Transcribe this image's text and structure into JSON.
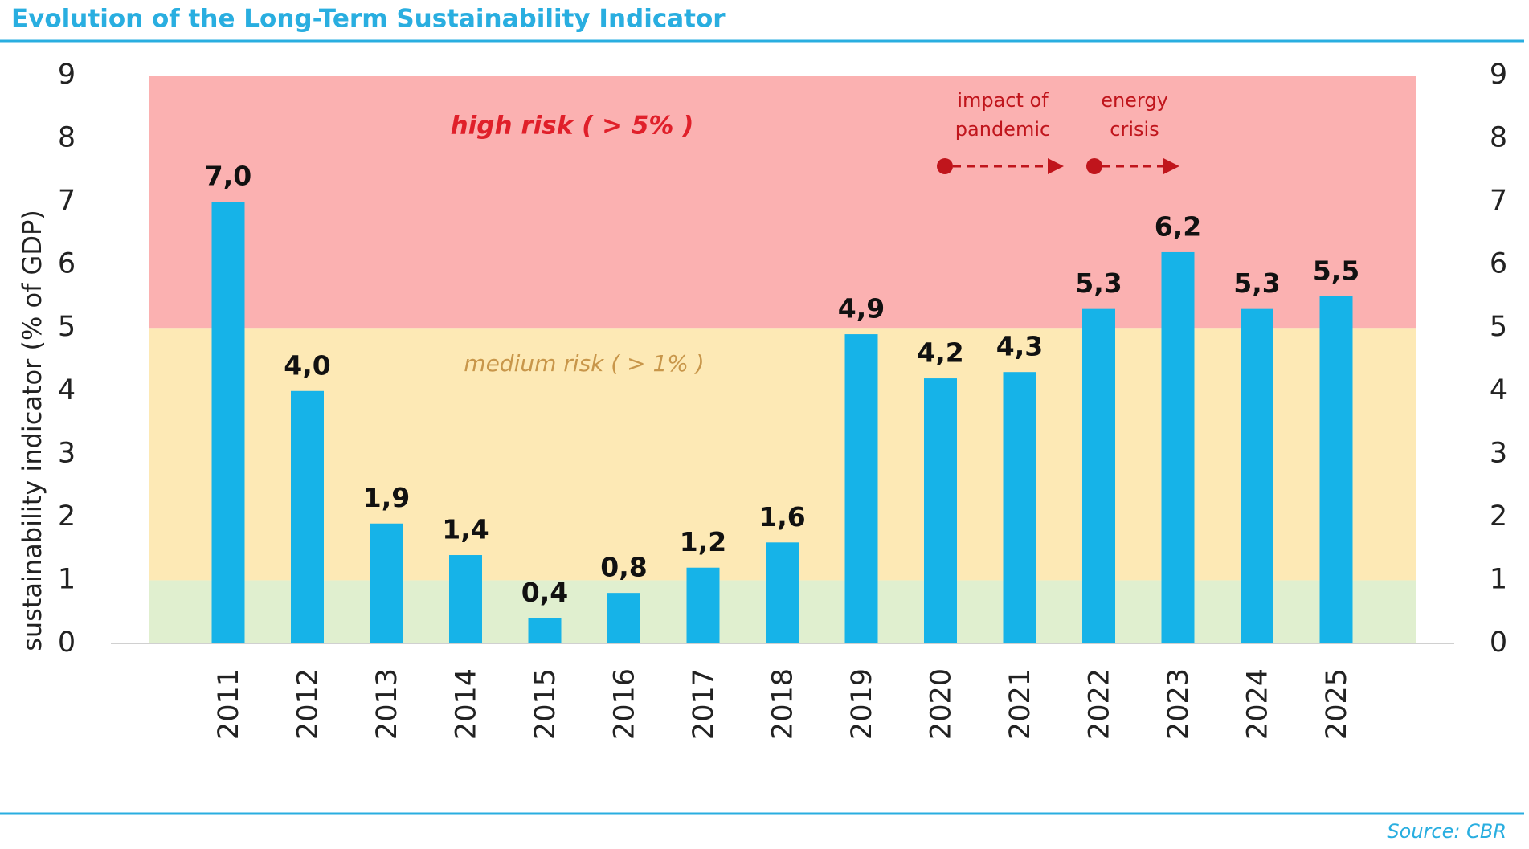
{
  "chart_data": {
    "type": "bar",
    "title": "Evolution of the Long-Term Sustainability Indicator",
    "y_label": "sustainability indicator (% of GDP)",
    "source": "Source: CBR",
    "categories": [
      "2011",
      "2012",
      "2013",
      "2014",
      "2015",
      "2016",
      "2017",
      "2018",
      "2019",
      "2020",
      "2021",
      "2022",
      "2023",
      "2024",
      "2025"
    ],
    "values": [
      7.0,
      4.0,
      1.9,
      1.4,
      0.4,
      0.8,
      1.2,
      1.6,
      4.9,
      4.2,
      4.3,
      5.3,
      6.2,
      5.3,
      5.5
    ],
    "value_labels": [
      "7,0",
      "4,0",
      "1,9",
      "1,4",
      "0,4",
      "0,8",
      "1,2",
      "1,6",
      "4,9",
      "4,2",
      "4,3",
      "5,3",
      "6,2",
      "5,3",
      "5,5"
    ],
    "color": "#16b3e8",
    "ylim": [
      0,
      9
    ],
    "yticks": [
      0,
      1,
      2,
      3,
      4,
      5,
      6,
      7,
      8,
      9
    ],
    "y2lim": [
      0,
      9
    ],
    "y2ticks": [
      0,
      1,
      2,
      3,
      4,
      5,
      6,
      7,
      8,
      9
    ],
    "zones": [
      {
        "from": 0,
        "to": 1,
        "color": "#e0efcf"
      },
      {
        "from": 1,
        "to": 5,
        "color": "#fde9b5",
        "label": "medium risk ( > 1% )",
        "label_color": "#c8964a"
      },
      {
        "from": 5,
        "to": 9,
        "color": "#fbb1b1",
        "label": "high risk ( > 5% )",
        "label_color": "#e0202a"
      }
    ],
    "annotations": [
      {
        "text": [
          "impact of",
          "pandemic"
        ]
      },
      {
        "text": [
          "energy",
          "crisis"
        ]
      }
    ]
  }
}
